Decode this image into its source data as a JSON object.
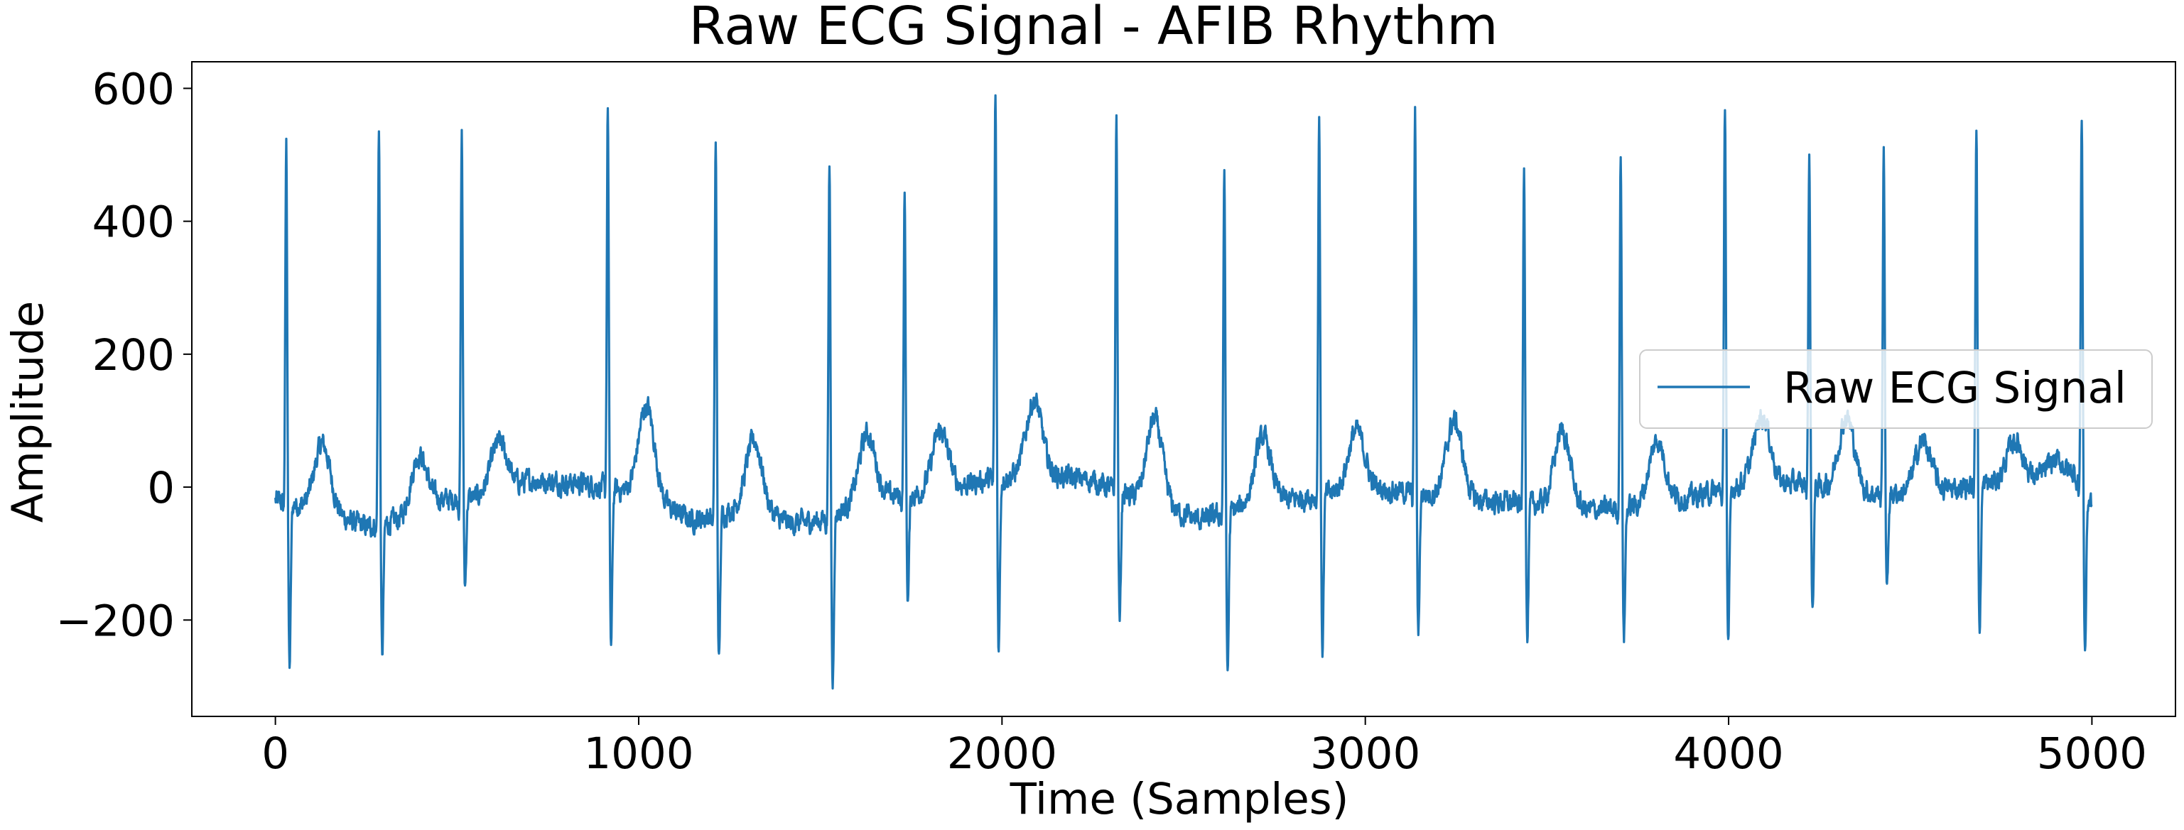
{
  "chart_data": {
    "type": "line",
    "title": "Raw ECG Signal - AFIB Rhythm",
    "xlabel": "Time (Samples)",
    "ylabel": "Amplitude",
    "xlim": [
      -230,
      5230
    ],
    "ylim": [
      -345,
      640
    ],
    "xticks": [
      0,
      1000,
      2000,
      3000,
      4000,
      5000
    ],
    "xtick_labels": [
      "0",
      "1000",
      "2000",
      "3000",
      "4000",
      "5000"
    ],
    "yticks": [
      -200,
      0,
      200,
      400,
      600
    ],
    "ytick_labels": [
      "−200",
      "0",
      "200",
      "400",
      "600"
    ],
    "grid": false,
    "legend_position": "center-right",
    "color": "#1f77b4",
    "series": [
      {
        "name": "Raw ECG Signal",
        "x_range": [
          0,
          4999
        ],
        "r_peaks": [
          {
            "x": 30,
            "peak": 520,
            "trough": -270
          },
          {
            "x": 285,
            "peak": 550,
            "trough": -255
          },
          {
            "x": 513,
            "peak": 535,
            "trough": -150
          },
          {
            "x": 915,
            "peak": 580,
            "trough": -240
          },
          {
            "x": 1212,
            "peak": 525,
            "trough": -265
          },
          {
            "x": 1525,
            "peak": 492,
            "trough": -300
          },
          {
            "x": 1732,
            "peak": 438,
            "trough": -170
          },
          {
            "x": 1982,
            "peak": 595,
            "trough": -245
          },
          {
            "x": 2315,
            "peak": 560,
            "trough": -200
          },
          {
            "x": 2612,
            "peak": 482,
            "trough": -280
          },
          {
            "x": 2873,
            "peak": 565,
            "trough": -245
          },
          {
            "x": 3137,
            "peak": 570,
            "trough": -225
          },
          {
            "x": 3437,
            "peak": 497,
            "trough": -230
          },
          {
            "x": 3703,
            "peak": 510,
            "trough": -225
          },
          {
            "x": 3990,
            "peak": 585,
            "trough": -248
          },
          {
            "x": 4222,
            "peak": 497,
            "trough": -185
          },
          {
            "x": 4427,
            "peak": 517,
            "trough": -160
          },
          {
            "x": 4682,
            "peak": 560,
            "trough": -218
          },
          {
            "x": 4972,
            "peak": 565,
            "trough": -240
          }
        ],
        "t_waves": [
          {
            "x": 130,
            "amp": 65
          },
          {
            "x": 395,
            "amp": 48
          },
          {
            "x": 615,
            "amp": 68
          },
          {
            "x": 1022,
            "amp": 122
          },
          {
            "x": 1318,
            "amp": 70
          },
          {
            "x": 1628,
            "amp": 80
          },
          {
            "x": 1830,
            "amp": 85
          },
          {
            "x": 2088,
            "amp": 130
          },
          {
            "x": 2420,
            "amp": 102
          },
          {
            "x": 2718,
            "amp": 75
          },
          {
            "x": 2975,
            "amp": 85
          },
          {
            "x": 3245,
            "amp": 100
          },
          {
            "x": 3542,
            "amp": 85
          },
          {
            "x": 3803,
            "amp": 70
          },
          {
            "x": 4092,
            "amp": 108
          },
          {
            "x": 4325,
            "amp": 105
          },
          {
            "x": 4535,
            "amp": 70
          },
          {
            "x": 4788,
            "amp": 70
          },
          {
            "x": 4900,
            "amp": 40
          }
        ],
        "baseline_knots": [
          [
            0,
            -20
          ],
          [
            120,
            -35
          ],
          [
            250,
            -60
          ],
          [
            350,
            -50
          ],
          [
            450,
            -20
          ],
          [
            560,
            -15
          ],
          [
            700,
            10
          ],
          [
            850,
            5
          ],
          [
            1000,
            -10
          ],
          [
            1150,
            -50
          ],
          [
            1300,
            -30
          ],
          [
            1420,
            -55
          ],
          [
            1500,
            -50
          ],
          [
            1650,
            -15
          ],
          [
            1800,
            -10
          ],
          [
            1950,
            10
          ],
          [
            2100,
            20
          ],
          [
            2250,
            10
          ],
          [
            2400,
            -25
          ],
          [
            2550,
            -50
          ],
          [
            2700,
            -25
          ],
          [
            2850,
            -15
          ],
          [
            3000,
            0
          ],
          [
            3150,
            -10
          ],
          [
            3300,
            -20
          ],
          [
            3450,
            -25
          ],
          [
            3600,
            -35
          ],
          [
            3750,
            -30
          ],
          [
            3900,
            -15
          ],
          [
            4050,
            5
          ],
          [
            4200,
            5
          ],
          [
            4350,
            -10
          ],
          [
            4500,
            -10
          ],
          [
            4650,
            0
          ],
          [
            4800,
            10
          ],
          [
            4950,
            20
          ],
          [
            4999,
            -25
          ]
        ]
      }
    ]
  }
}
